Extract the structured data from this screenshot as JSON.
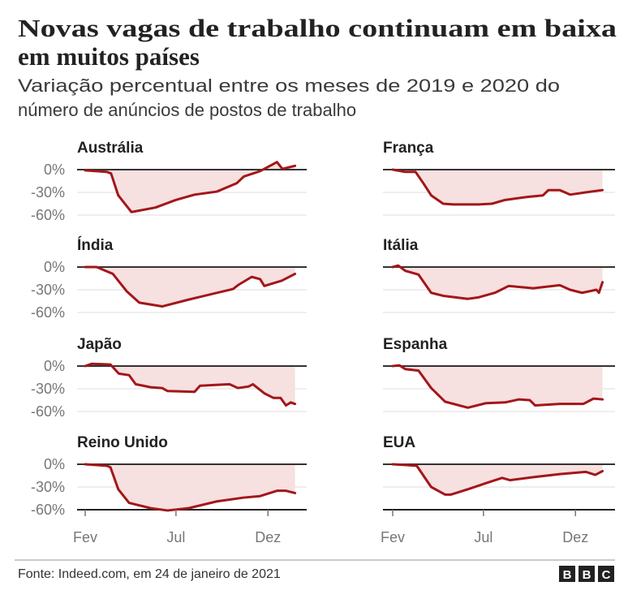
{
  "title_lines": [
    "Novas vagas de trabalho continuam em baixa",
    "em muitos países"
  ],
  "subtitle_lines": [
    "Variação percentual entre os meses de 2019 e 2020 do",
    "número de anúncios de postos de trabalho"
  ],
  "source": "Fonte: Indeed.com, em 24 de janeiro de 2021",
  "logo": "BBC",
  "colors": {
    "line": "#a3161a",
    "fill": "#f6e0e0",
    "grid": "#dddddd",
    "axis": "#333333",
    "tick_text": "#777777"
  },
  "chart_data": {
    "type": "area",
    "layout": "small-multiples-4x2",
    "grid": true,
    "ylim": [
      -60,
      0
    ],
    "yticks": [
      0,
      -30,
      -60
    ],
    "ytick_labels": [
      "0%",
      "-30%",
      "-60%"
    ],
    "xlim": [
      "2020-02-01",
      "2021-01-15"
    ],
    "xticks": [
      "2020-02-01",
      "2020-07-01",
      "2020-12-01"
    ],
    "xtick_labels": [
      "Fev",
      "Jul",
      "Dez"
    ],
    "panels": [
      {
        "name": "Austrália",
        "points": [
          [
            "2020-02-01",
            -1
          ],
          [
            "2020-03-08",
            -3
          ],
          [
            "2020-03-15",
            -5
          ],
          [
            "2020-03-27",
            -34
          ],
          [
            "2020-04-18",
            -56
          ],
          [
            "2020-05-28",
            -50
          ],
          [
            "2020-07-01",
            -40
          ],
          [
            "2020-08-01",
            -33
          ],
          [
            "2020-09-07",
            -29
          ],
          [
            "2020-10-10",
            -18
          ],
          [
            "2020-10-22",
            -9
          ],
          [
            "2020-11-18",
            -2
          ],
          [
            "2020-12-16",
            10
          ],
          [
            "2020-12-25",
            1
          ],
          [
            "2021-01-15",
            5
          ]
        ]
      },
      {
        "name": "França",
        "points": [
          [
            "2020-02-01",
            0
          ],
          [
            "2020-02-22",
            -3
          ],
          [
            "2020-03-10",
            -3
          ],
          [
            "2020-03-23",
            -18
          ],
          [
            "2020-04-05",
            -34
          ],
          [
            "2020-04-25",
            -45
          ],
          [
            "2020-05-12",
            -46
          ],
          [
            "2020-06-23",
            -46
          ],
          [
            "2020-07-15",
            -45
          ],
          [
            "2020-08-06",
            -40
          ],
          [
            "2020-09-12",
            -36
          ],
          [
            "2020-10-08",
            -34
          ],
          [
            "2020-10-17",
            -27
          ],
          [
            "2020-11-05",
            -27
          ],
          [
            "2020-11-22",
            -33
          ],
          [
            "2020-12-18",
            -30
          ],
          [
            "2021-01-15",
            -27
          ]
        ]
      },
      {
        "name": "Índia",
        "points": [
          [
            "2020-02-01",
            0
          ],
          [
            "2020-02-20",
            0
          ],
          [
            "2020-03-18",
            -9
          ],
          [
            "2020-04-10",
            -32
          ],
          [
            "2020-05-01",
            -47
          ],
          [
            "2020-06-08",
            -52
          ],
          [
            "2020-07-22",
            -43
          ],
          [
            "2020-08-28",
            -36
          ],
          [
            "2020-10-04",
            -29
          ],
          [
            "2020-10-12",
            -24
          ],
          [
            "2020-11-04",
            -13
          ],
          [
            "2020-11-18",
            -16
          ],
          [
            "2020-11-25",
            -25
          ],
          [
            "2020-12-24",
            -18
          ],
          [
            "2021-01-15",
            -9
          ]
        ]
      },
      {
        "name": "Itália",
        "points": [
          [
            "2020-02-01",
            0
          ],
          [
            "2020-02-10",
            2
          ],
          [
            "2020-02-22",
            -5
          ],
          [
            "2020-03-15",
            -10
          ],
          [
            "2020-04-05",
            -34
          ],
          [
            "2020-04-25",
            -38
          ],
          [
            "2020-06-05",
            -42
          ],
          [
            "2020-06-23",
            -40
          ],
          [
            "2020-07-20",
            -34
          ],
          [
            "2020-08-12",
            -25
          ],
          [
            "2020-09-22",
            -28
          ],
          [
            "2020-11-05",
            -24
          ],
          [
            "2020-11-22",
            -30
          ],
          [
            "2020-12-12",
            -34
          ],
          [
            "2021-01-05",
            -30
          ],
          [
            "2021-01-09",
            -34
          ],
          [
            "2021-01-15",
            -20
          ]
        ]
      },
      {
        "name": "Japão",
        "points": [
          [
            "2020-02-01",
            0
          ],
          [
            "2020-02-12",
            3
          ],
          [
            "2020-03-14",
            2
          ],
          [
            "2020-03-28",
            -10
          ],
          [
            "2020-04-14",
            -12
          ],
          [
            "2020-04-25",
            -24
          ],
          [
            "2020-05-20",
            -28
          ],
          [
            "2020-06-08",
            -29
          ],
          [
            "2020-06-17",
            -33
          ],
          [
            "2020-08-01",
            -34
          ],
          [
            "2020-08-10",
            -26
          ],
          [
            "2020-09-28",
            -24
          ],
          [
            "2020-10-12",
            -29
          ],
          [
            "2020-10-30",
            -27
          ],
          [
            "2020-11-06",
            -24
          ],
          [
            "2020-11-25",
            -36
          ],
          [
            "2020-12-10",
            -42
          ],
          [
            "2020-12-22",
            -42
          ],
          [
            "2020-12-31",
            -52
          ],
          [
            "2021-01-08",
            -48
          ],
          [
            "2021-01-15",
            -50
          ]
        ]
      },
      {
        "name": "Espanha",
        "points": [
          [
            "2020-02-01",
            0
          ],
          [
            "2020-02-12",
            1
          ],
          [
            "2020-02-22",
            -4
          ],
          [
            "2020-03-15",
            -6
          ],
          [
            "2020-04-05",
            -29
          ],
          [
            "2020-04-28",
            -47
          ],
          [
            "2020-06-05",
            -55
          ],
          [
            "2020-07-05",
            -49
          ],
          [
            "2020-08-06",
            -48
          ],
          [
            "2020-08-29",
            -44
          ],
          [
            "2020-09-16",
            -45
          ],
          [
            "2020-09-25",
            -52
          ],
          [
            "2020-11-05",
            -50
          ],
          [
            "2020-12-14",
            -50
          ],
          [
            "2020-12-31",
            -43
          ],
          [
            "2021-01-15",
            -44
          ]
        ]
      },
      {
        "name": "Reino Unido",
        "points": [
          [
            "2020-02-01",
            0
          ],
          [
            "2020-03-08",
            -2
          ],
          [
            "2020-03-14",
            -4
          ],
          [
            "2020-03-27",
            -33
          ],
          [
            "2020-04-14",
            -51
          ],
          [
            "2020-05-20",
            -58
          ],
          [
            "2020-06-17",
            -61
          ],
          [
            "2020-07-22",
            -58
          ],
          [
            "2020-09-07",
            -49
          ],
          [
            "2020-10-22",
            -44
          ],
          [
            "2020-11-18",
            -42
          ],
          [
            "2020-12-16",
            -35
          ],
          [
            "2020-12-31",
            -35
          ],
          [
            "2021-01-15",
            -38
          ]
        ]
      },
      {
        "name": "EUA",
        "points": [
          [
            "2020-02-01",
            0
          ],
          [
            "2020-02-22",
            -1
          ],
          [
            "2020-03-12",
            -2
          ],
          [
            "2020-04-05",
            -30
          ],
          [
            "2020-04-28",
            -40
          ],
          [
            "2020-05-08",
            -40
          ],
          [
            "2020-06-05",
            -33
          ],
          [
            "2020-07-05",
            -25
          ],
          [
            "2020-08-01",
            -18
          ],
          [
            "2020-08-14",
            -21
          ],
          [
            "2020-09-22",
            -17
          ],
          [
            "2020-11-05",
            -13
          ],
          [
            "2020-12-18",
            -10
          ],
          [
            "2021-01-03",
            -14
          ],
          [
            "2021-01-15",
            -9
          ]
        ]
      }
    ]
  }
}
